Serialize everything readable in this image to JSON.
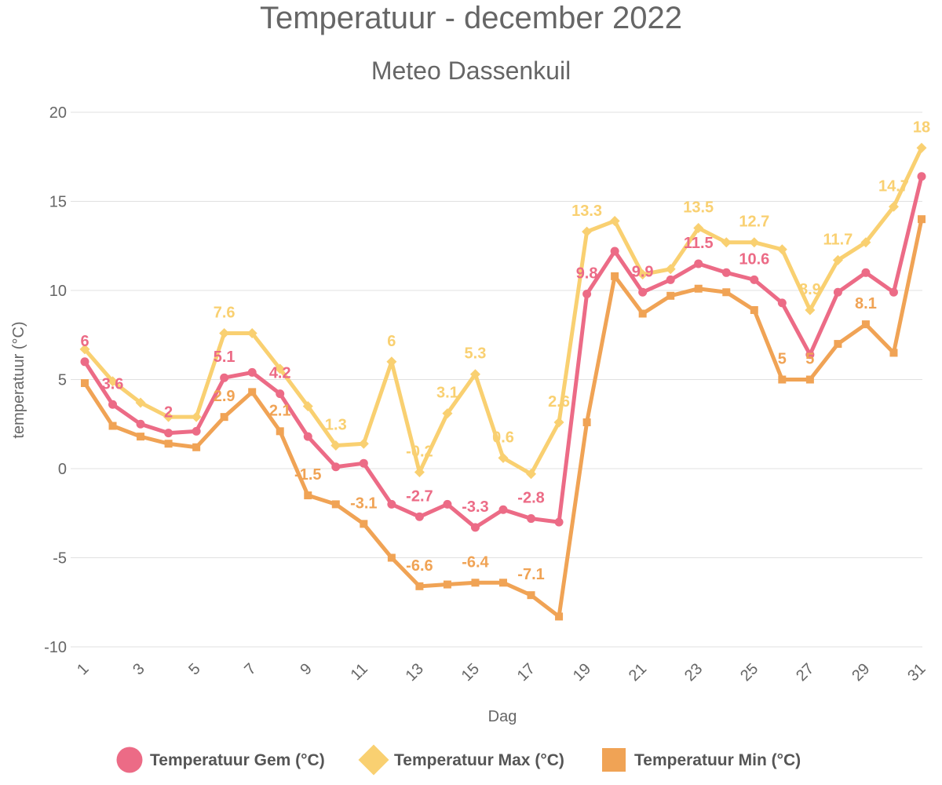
{
  "chart_data": {
    "type": "line",
    "title": "Temperatuur - december 2022",
    "subtitle": "Meteo Dassenkuil",
    "xlabel": "Dag",
    "ylabel": "temperatuur (°C)",
    "ylim": [
      -10,
      20
    ],
    "yticks": [
      -10,
      -5,
      0,
      5,
      10,
      15,
      20
    ],
    "x": [
      1,
      2,
      3,
      4,
      5,
      6,
      7,
      8,
      9,
      10,
      11,
      12,
      13,
      14,
      15,
      16,
      17,
      18,
      19,
      20,
      21,
      22,
      23,
      24,
      25,
      26,
      27,
      28,
      29,
      30,
      31
    ],
    "xticks": [
      "1",
      "3",
      "5",
      "7",
      "9",
      "11",
      "13",
      "15",
      "17",
      "19",
      "21",
      "23",
      "25",
      "27",
      "29",
      "31"
    ],
    "grid": true,
    "legend": "bottom",
    "series": [
      {
        "name": "Temperatuur Gem (°C)",
        "color": "#ec6b86",
        "marker": "circle",
        "values": [
          6,
          3.6,
          2.5,
          2,
          2.1,
          5.1,
          5.4,
          4.2,
          1.8,
          0.1,
          0.3,
          -2,
          -2.7,
          -2,
          -3.3,
          -2.3,
          -2.8,
          -3,
          9.8,
          12.2,
          9.9,
          10.6,
          11.5,
          11,
          10.6,
          9.3,
          6.4,
          9.9,
          11,
          9.9,
          16.4
        ],
        "labels": [
          {
            "x": 1,
            "text": "6"
          },
          {
            "x": 2,
            "text": "3.6"
          },
          {
            "x": 4,
            "text": "2"
          },
          {
            "x": 6,
            "text": "5.1"
          },
          {
            "x": 8,
            "text": "4.2"
          },
          {
            "x": 13,
            "text": "-2.7"
          },
          {
            "x": 15,
            "text": "-3.3"
          },
          {
            "x": 17,
            "text": "-2.8"
          },
          {
            "x": 19,
            "text": "9.8"
          },
          {
            "x": 21,
            "text": "9.9"
          },
          {
            "x": 23,
            "text": "11.5"
          },
          {
            "x": 25,
            "text": "10.6"
          }
        ]
      },
      {
        "name": "Temperatuur Max (°C)",
        "color": "#f9d071",
        "marker": "diamond",
        "values": [
          6.7,
          4.9,
          3.7,
          2.9,
          2.9,
          7.6,
          7.6,
          5.6,
          3.5,
          1.3,
          1.4,
          6,
          -0.2,
          3.1,
          5.3,
          0.6,
          -0.3,
          2.6,
          13.3,
          13.9,
          10.9,
          11.2,
          13.5,
          12.7,
          12.7,
          12.3,
          8.9,
          11.7,
          12.7,
          14.7,
          18
        ],
        "labels": [
          {
            "x": 6,
            "text": "7.6"
          },
          {
            "x": 10,
            "text": "1.3"
          },
          {
            "x": 12,
            "text": "6"
          },
          {
            "x": 13,
            "text": "-0.2"
          },
          {
            "x": 14,
            "text": "3.1"
          },
          {
            "x": 15,
            "text": "5.3"
          },
          {
            "x": 16,
            "text": "0.6"
          },
          {
            "x": 18,
            "text": "2.6"
          },
          {
            "x": 19,
            "text": "13.3"
          },
          {
            "x": 23,
            "text": "13.5"
          },
          {
            "x": 25,
            "text": "12.7"
          },
          {
            "x": 27,
            "text": "8.9"
          },
          {
            "x": 28,
            "text": "11.7"
          },
          {
            "x": 30,
            "text": "14.7"
          },
          {
            "x": 31,
            "text": "18"
          }
        ]
      },
      {
        "name": "Temperatuur Min (°C)",
        "color": "#f0a355",
        "marker": "square",
        "values": [
          4.8,
          2.4,
          1.8,
          1.4,
          1.2,
          2.9,
          4.3,
          2.1,
          -1.5,
          -2,
          -3.1,
          -5,
          -6.6,
          -6.5,
          -6.4,
          -6.4,
          -7.1,
          -8.3,
          2.6,
          10.8,
          8.7,
          9.7,
          10.1,
          9.9,
          8.9,
          5,
          5,
          7,
          8.1,
          6.5,
          14
        ],
        "labels": [
          {
            "x": 6,
            "text": "2.9"
          },
          {
            "x": 8,
            "text": "2.1"
          },
          {
            "x": 9,
            "text": "-1.5"
          },
          {
            "x": 11,
            "text": "-3.1"
          },
          {
            "x": 13,
            "text": "-6.6"
          },
          {
            "x": 15,
            "text": "-6.4"
          },
          {
            "x": 17,
            "text": "-7.1"
          },
          {
            "x": 26,
            "text": "5"
          },
          {
            "x": 27,
            "text": "5"
          },
          {
            "x": 29,
            "text": "8.1"
          }
        ]
      }
    ]
  }
}
